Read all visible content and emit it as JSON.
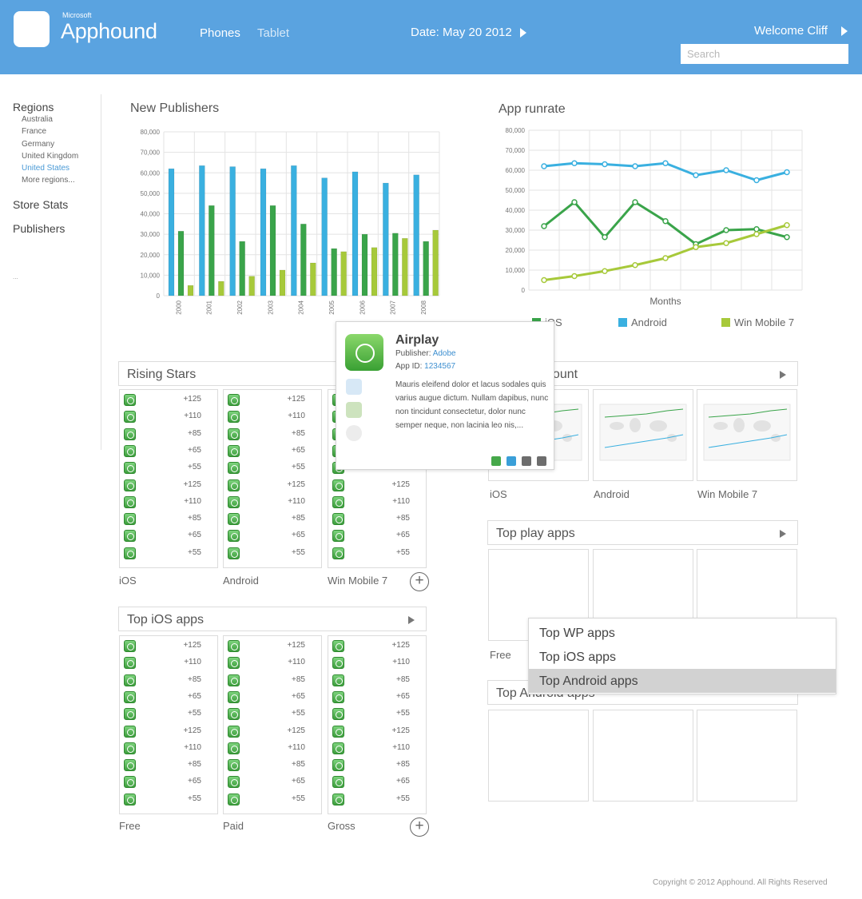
{
  "header": {
    "brand_small": "Microsoft",
    "brand_name": "Apphound",
    "nav": [
      "Phones",
      "Tablet"
    ],
    "date": "Date: May 20 2012",
    "welcome": "Welcome Cliff",
    "search_placeholder": "Search"
  },
  "sidebar": {
    "regions_title": "Regions",
    "regions": [
      "Australia",
      "France",
      "Germany",
      "United Kingdom",
      "United States",
      "More regions..."
    ],
    "active_region": "United States",
    "store_stats": "Store Stats",
    "publishers": "Publishers",
    "dots": "..."
  },
  "colors": {
    "header": "#5aa3e0",
    "ios": "#3aa44a",
    "android": "#3ab0e0",
    "winmobile": "#a7c93a",
    "link": "#3d8fd0"
  },
  "chart_data": [
    {
      "type": "bar",
      "title": "New Publishers",
      "categories": [
        "2000",
        "2001",
        "2002",
        "2003",
        "2004",
        "2005",
        "2006",
        "2007",
        "2008"
      ],
      "series": [
        {
          "values": [
            62000,
            63500,
            63000,
            62000,
            63500,
            57500,
            60500,
            55000,
            59000
          ]
        },
        {
          "values": [
            31500,
            44000,
            26500,
            44000,
            35000,
            23000,
            30000,
            30500,
            26500
          ]
        },
        {
          "values": [
            5000,
            7000,
            9500,
            12500,
            16000,
            21500,
            23500,
            28000,
            32000
          ]
        }
      ],
      "ylim": [
        0,
        80000
      ],
      "yticks": [
        "0",
        "10,000",
        "20,000",
        "30,000",
        "40,000",
        "50,000",
        "60,000",
        "70,000",
        "80,000"
      ],
      "grid": true
    },
    {
      "type": "line",
      "title": "App runrate",
      "xlabel": "Months",
      "x": [
        1,
        2,
        3,
        4,
        5,
        6,
        7,
        8,
        9
      ],
      "series": [
        {
          "name": "iOS",
          "values": [
            32000,
            44000,
            26500,
            44000,
            34500,
            23000,
            30000,
            30500,
            26500
          ]
        },
        {
          "name": "Android",
          "values": [
            62000,
            63500,
            63000,
            62000,
            63500,
            57500,
            60000,
            55000,
            59000
          ]
        },
        {
          "name": "Win Mobile 7",
          "values": [
            5000,
            7000,
            9500,
            12500,
            16000,
            21500,
            23500,
            28000,
            32500
          ]
        }
      ],
      "ylim": [
        0,
        80000
      ],
      "yticks": [
        "0",
        "10,000",
        "20,000",
        "30,000",
        "40,000",
        "50,000",
        "60,000",
        "70,000",
        "80,000"
      ],
      "legend_position": "bottom",
      "grid": true
    }
  ],
  "rising_stars": {
    "title": "Rising Stars",
    "columns": [
      {
        "label": "iOS",
        "values": [
          "+125",
          "+110",
          "+85",
          "+65",
          "+55",
          "+125",
          "+110",
          "+85",
          "+65",
          "+55"
        ]
      },
      {
        "label": "Android",
        "values": [
          "+125",
          "+110",
          "+85",
          "+65",
          "+55",
          "+125",
          "+110",
          "+85",
          "+65",
          "+55"
        ]
      },
      {
        "label": "Win Mobile 7",
        "values": [
          "+125",
          "+110",
          "+85",
          "+65",
          "+55",
          "+125",
          "+110",
          "+85",
          "+65",
          "+55"
        ]
      }
    ],
    "plus": "+"
  },
  "top_ios": {
    "title": "Top iOS apps",
    "columns": [
      {
        "label": "Free",
        "values": [
          "+125",
          "+110",
          "+85",
          "+65",
          "+55",
          "+125",
          "+110",
          "+85",
          "+65",
          "+55"
        ]
      },
      {
        "label": "Paid",
        "values": [
          "+125",
          "+110",
          "+85",
          "+65",
          "+55",
          "+125",
          "+110",
          "+85",
          "+65",
          "+55"
        ]
      },
      {
        "label": "Gross",
        "values": [
          "+125",
          "+110",
          "+85",
          "+65",
          "+55",
          "+125",
          "+110",
          "+85",
          "+65",
          "+55"
        ]
      }
    ],
    "plus": "+"
  },
  "app_count": {
    "title": "App count",
    "labels": [
      "iOS",
      "Android",
      "Win Mobile 7"
    ]
  },
  "top_play": {
    "title": "Top play apps",
    "label": "Free"
  },
  "top_android": {
    "title": "Top Android apps"
  },
  "popup": {
    "name": "Airplay",
    "publisher_label": "Publisher: ",
    "publisher": "Adobe",
    "appid_label": "App ID: ",
    "appid": "1234567",
    "description": "Mauris eleifend dolor et lacus sodales quis varius augue dictum. Nullam dapibus, nunc non tincidunt consectetur, dolor nunc semper neque, non lacinia leo nis,...",
    "store_icons": [
      "shopping-bag-icon",
      "android-icon",
      "apple-icon"
    ],
    "buttons": [
      "dollar-icon",
      "bag-icon",
      "square-icon",
      "square-icon"
    ]
  },
  "dropdown": {
    "items": [
      "Top WP apps",
      "Top iOS apps",
      "Top Android apps"
    ],
    "selected": "Top Android apps"
  },
  "footer": {
    "copyright": "Copyright © 2012 Apphound. All Rights Reserved"
  }
}
